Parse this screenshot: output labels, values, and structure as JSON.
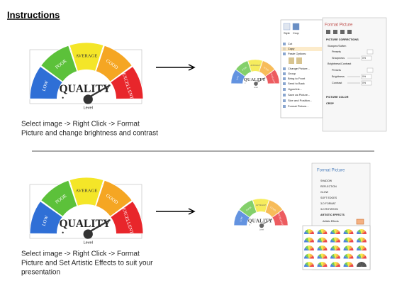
{
  "title": "Instructions",
  "gauge": {
    "segments": [
      "LOW",
      "POOR",
      "AVERAGE",
      "GOOD",
      "EXCELLENT"
    ],
    "center": "QUALITY",
    "caption": "Level"
  },
  "step1": {
    "caption": [
      "Select image -> Right Click -> Format",
      "Picture and change brightness and contrast"
    ]
  },
  "step2": {
    "caption": [
      "Select image -> Right Click -> Format",
      "Picture and Set Artistic Effects to suit your",
      "presentation"
    ]
  },
  "toolbar": [
    "Style",
    "Crop"
  ],
  "context_menu": [
    "Cut",
    "Copy",
    "Paste Options:",
    "Change Picture...",
    "Group",
    "Bring to Front",
    "Send to Back",
    "Hyperlink...",
    "Save as Picture...",
    "Size and Position...",
    "Format Picture..."
  ],
  "panel1": {
    "title": "Format Picture",
    "section": "PICTURE CORRECTIONS",
    "rows": [
      "Sharpen/Soften",
      "Presets",
      "Sharpness",
      "Brightness/Contrast",
      "Presets",
      "Brightness",
      "Contrast"
    ],
    "value": "0%",
    "collapsed": [
      "PICTURE COLOR",
      "CROP"
    ]
  },
  "panel2": {
    "title": "Format Picture",
    "sections": [
      "SHADOW",
      "REFLECTION",
      "GLOW",
      "SOFT EDGES",
      "3-D FORMAT",
      "3-D ROTATION",
      "ARTISTIC EFFECTS"
    ],
    "row": "Artistic Effects"
  }
}
